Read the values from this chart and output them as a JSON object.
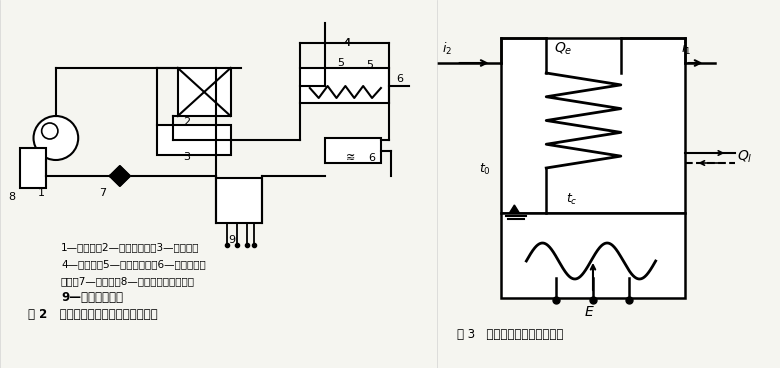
{
  "bg_color": "#f5f5f0",
  "left_panel": {
    "caption_line1": "1—压缩机；2—风冷冷凝器；3—储液器；",
    "caption_line2": "4—过冷器；5—干燥过滤器；6—涅轮流量变",
    "caption_line3": "送器；7—膨胀阁；8—二次制冷剂量热计；",
    "caption_line4": "9—含油测定装置",
    "fig_label": "图 2   涅轮流量变送器标定系统原理图"
  },
  "right_panel": {
    "fig_label": "图 3   二次制冷剂量热计示意图"
  }
}
